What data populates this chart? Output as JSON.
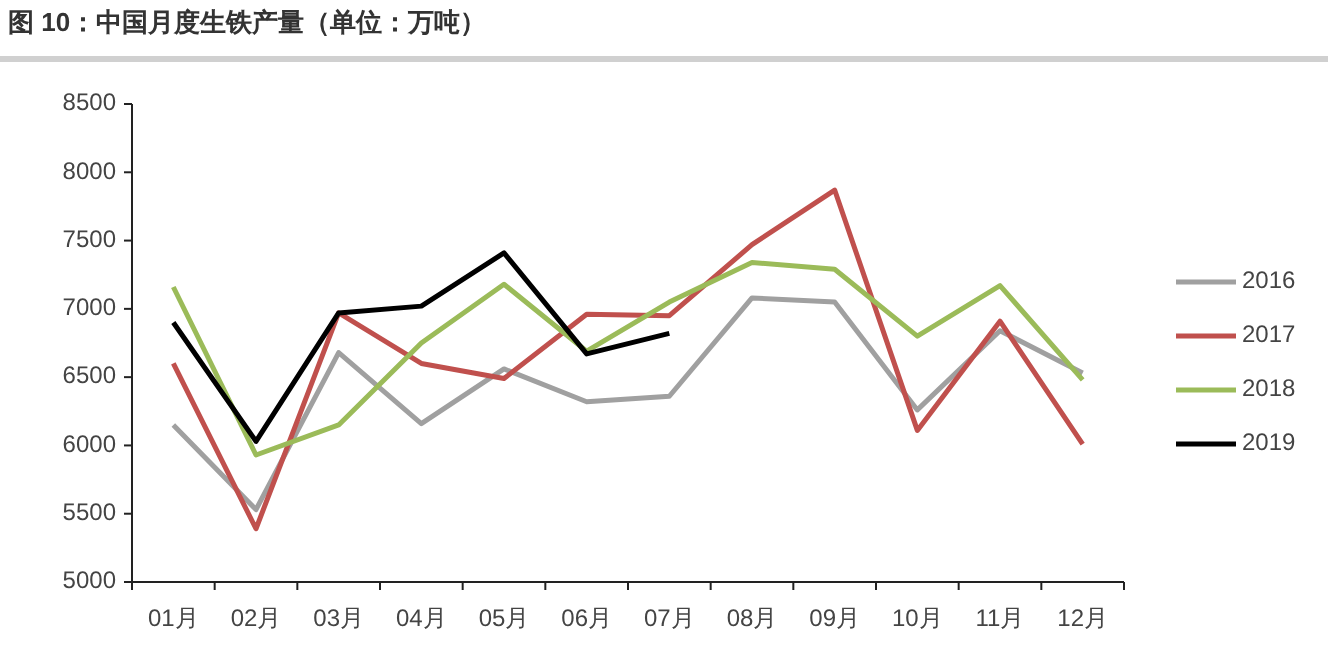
{
  "chart_data": {
    "type": "line",
    "title": "图 10：中国月度生铁产量（单位：万吨）",
    "categories": [
      "01月",
      "02月",
      "03月",
      "04月",
      "05月",
      "06月",
      "07月",
      "08月",
      "09月",
      "10月",
      "11月",
      "12月"
    ],
    "series": [
      {
        "name": "2016",
        "color": "#a0a0a0",
        "values": [
          6150,
          5530,
          6680,
          6160,
          6560,
          6320,
          6360,
          7080,
          7050,
          6260,
          6840,
          6530
        ]
      },
      {
        "name": "2017",
        "color": "#c0504d",
        "values": [
          6600,
          5390,
          6970,
          6600,
          6490,
          6960,
          6950,
          7470,
          7870,
          6110,
          6910,
          6010
        ]
      },
      {
        "name": "2018",
        "color": "#9bbb59",
        "values": [
          7160,
          5930,
          6150,
          6750,
          7180,
          6690,
          7050,
          7340,
          7290,
          6800,
          7170,
          6480
        ]
      },
      {
        "name": "2019",
        "color": "#000000",
        "values": [
          6900,
          6030,
          6970,
          7020,
          7410,
          6670,
          6820,
          null,
          null,
          null,
          null,
          null
        ]
      }
    ],
    "ylim": [
      5000,
      8500
    ],
    "yticks": [
      5000,
      5500,
      6000,
      6500,
      7000,
      7500,
      8000,
      8500
    ],
    "grid": false,
    "legend": "right",
    "marker": "none",
    "line_style": "solid"
  }
}
